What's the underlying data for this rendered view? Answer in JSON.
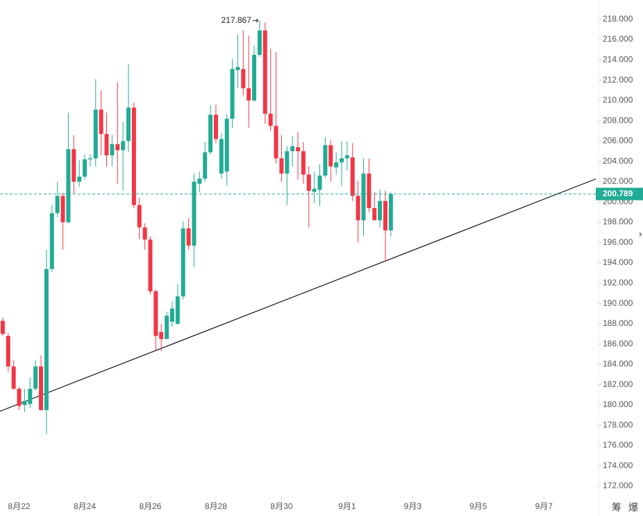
{
  "chart_data": {
    "type": "candlestick",
    "up_color": "#22ab94",
    "down_color": "#f23645",
    "x": [
      0,
      1,
      2,
      3,
      4,
      5,
      6,
      7,
      8,
      9,
      10,
      11,
      12,
      13,
      14,
      15,
      16,
      17,
      18,
      19,
      20,
      21,
      22,
      23,
      24,
      25,
      26,
      27,
      28,
      29,
      30,
      31,
      32,
      33,
      34,
      35,
      36,
      37,
      38,
      39,
      40,
      41,
      42,
      43,
      44,
      45,
      46,
      47,
      48,
      49,
      50,
      51,
      52,
      53,
      54,
      55,
      56,
      57,
      58,
      59,
      60,
      61,
      62,
      63,
      64,
      65,
      66,
      67,
      68,
      69,
      70,
      71
    ],
    "open": [
      188.3,
      186.8,
      183.8,
      181.6,
      180.0,
      180.1,
      181.6,
      183.8,
      179.5,
      193.4,
      198.9,
      200.6,
      198.0,
      205.2,
      202.0,
      202.5,
      204.2,
      204.3,
      209.1,
      206.7,
      204.6,
      205.7,
      205.1,
      206.0,
      209.3,
      199.7,
      197.5,
      196.3,
      191.2,
      187.2,
      186.5,
      188.2,
      188.0,
      190.7,
      197.4,
      195.7,
      201.8,
      202.3,
      204.9,
      208.6,
      202.8,
      203.0,
      208.2,
      213.0,
      213.1,
      211.2,
      210.0,
      214.5,
      216.9,
      208.7,
      207.5,
      204.3,
      202.8,
      205.0,
      205.4,
      205.0,
      202.7,
      201.0,
      201.2,
      202.6,
      205.6,
      203.4,
      203.9,
      204.3,
      204.4,
      200.6,
      198.2,
      202.8,
      199.4,
      198.2,
      200.1,
      197.2
    ],
    "high": [
      188.6,
      187.1,
      184.4,
      181.8,
      181.6,
      182.7,
      184.4,
      184.9,
      195.3,
      199.7,
      202.0,
      200.9,
      208.8,
      206.6,
      204.1,
      204.7,
      204.7,
      212.1,
      211.0,
      208.8,
      206.6,
      211.8,
      207.9,
      213.6,
      209.8,
      200.4,
      197.9,
      196.6,
      191.4,
      188.0,
      189.2,
      190.2,
      191.9,
      198.1,
      198.4,
      202.8,
      203.0,
      205.9,
      209.5,
      209.6,
      206.8,
      208.6,
      214.1,
      216.5,
      216.9,
      216.4,
      215.4,
      217.867,
      217.7,
      215.1,
      214.8,
      206.6,
      205.5,
      206.5,
      206.9,
      205.9,
      203.5,
      203.0,
      203.7,
      206.4,
      206.1,
      204.9,
      206.0,
      206.0,
      205.8,
      202.1,
      204.3,
      204.3,
      201.0,
      201.2,
      201.1,
      201.0
    ],
    "low": [
      186.8,
      183.3,
      181.5,
      179.5,
      179.3,
      179.7,
      181.4,
      179.4,
      177.1,
      193.1,
      198.5,
      195.3,
      197.9,
      200.8,
      201.5,
      202.2,
      203.5,
      203.5,
      204.6,
      203.5,
      203.5,
      201.8,
      201.1,
      204.9,
      199.4,
      196.3,
      195.3,
      190.9,
      185.4,
      185.3,
      186.5,
      187.7,
      187.9,
      190.4,
      195.3,
      193.6,
      201.0,
      202.0,
      204.7,
      205.8,
      202.3,
      201.6,
      207.3,
      211.2,
      210.5,
      207.3,
      209.9,
      214.3,
      207.7,
      207.0,
      203.8,
      202.0,
      199.7,
      203.5,
      202.2,
      201.8,
      197.5,
      199.9,
      199.6,
      202.4,
      202.0,
      202.7,
      201.6,
      203.1,
      200.1,
      196.0,
      196.6,
      199.0,
      198.3,
      197.5,
      194.1,
      196.6
    ],
    "close": [
      187.0,
      183.8,
      181.6,
      179.9,
      180.4,
      181.6,
      183.8,
      179.5,
      193.4,
      198.9,
      200.6,
      198.0,
      205.2,
      202.0,
      202.5,
      204.2,
      204.3,
      209.1,
      206.7,
      204.6,
      205.7,
      205.1,
      206.0,
      209.3,
      199.7,
      197.5,
      196.3,
      191.2,
      186.8,
      186.5,
      188.8,
      189.5,
      190.7,
      197.4,
      195.7,
      202.0,
      202.3,
      204.9,
      208.6,
      206.2,
      206.2,
      208.2,
      213.1,
      213.3,
      211.2,
      210.0,
      214.5,
      216.9,
      208.7,
      207.5,
      204.3,
      202.8,
      205.0,
      205.5,
      205.0,
      202.7,
      201.1,
      201.3,
      202.6,
      205.6,
      203.5,
      203.9,
      204.3,
      204.6,
      200.6,
      198.2,
      202.8,
      199.4,
      198.2,
      200.1,
      197.2,
      200.789
    ],
    "xlim": [
      -0.5,
      109
    ],
    "xticks": [
      {
        "value": 3,
        "label": "8月22"
      },
      {
        "value": 15,
        "label": "8月24"
      },
      {
        "value": 27,
        "label": "8月26"
      },
      {
        "value": 39,
        "label": "8月28"
      },
      {
        "value": 51,
        "label": "8月30"
      },
      {
        "value": 63,
        "label": "9月1"
      },
      {
        "value": 75,
        "label": "9月3"
      },
      {
        "value": 87,
        "label": "9月5"
      },
      {
        "value": 99,
        "label": "9月7"
      }
    ],
    "ylim": [
      171.25,
      219.9
    ],
    "yticks": [
      {
        "value": 172,
        "label": "172.000"
      },
      {
        "value": 174,
        "label": "174.000"
      },
      {
        "value": 176,
        "label": "176.000"
      },
      {
        "value": 178,
        "label": "178.000"
      },
      {
        "value": 180,
        "label": "180.000"
      },
      {
        "value": 182,
        "label": "182.000"
      },
      {
        "value": 184,
        "label": "184.000"
      },
      {
        "value": 186,
        "label": "186.000"
      },
      {
        "value": 188,
        "label": "188.000"
      },
      {
        "value": 190,
        "label": "190.000"
      },
      {
        "value": 192,
        "label": "192.000"
      },
      {
        "value": 194,
        "label": "194.000"
      },
      {
        "value": 196,
        "label": "196.000"
      },
      {
        "value": 198,
        "label": "198.000"
      },
      {
        "value": 200,
        "label": "200.000"
      },
      {
        "value": 202,
        "label": "202.000"
      },
      {
        "value": 204,
        "label": "204.000"
      },
      {
        "value": 206,
        "label": "206.000"
      },
      {
        "value": 208,
        "label": "208.000"
      },
      {
        "value": 210,
        "label": "210.000"
      },
      {
        "value": 212,
        "label": "212.000"
      },
      {
        "value": 214,
        "label": "214.000"
      },
      {
        "value": 216,
        "label": "216.000"
      },
      {
        "value": 218,
        "label": "218.000"
      }
    ],
    "high_marker": {
      "value": 217.867,
      "label": "217.867"
    },
    "last_price": {
      "value": 200.789,
      "label": "200.789"
    },
    "footer_icons": [
      "筹",
      "爆"
    ]
  }
}
